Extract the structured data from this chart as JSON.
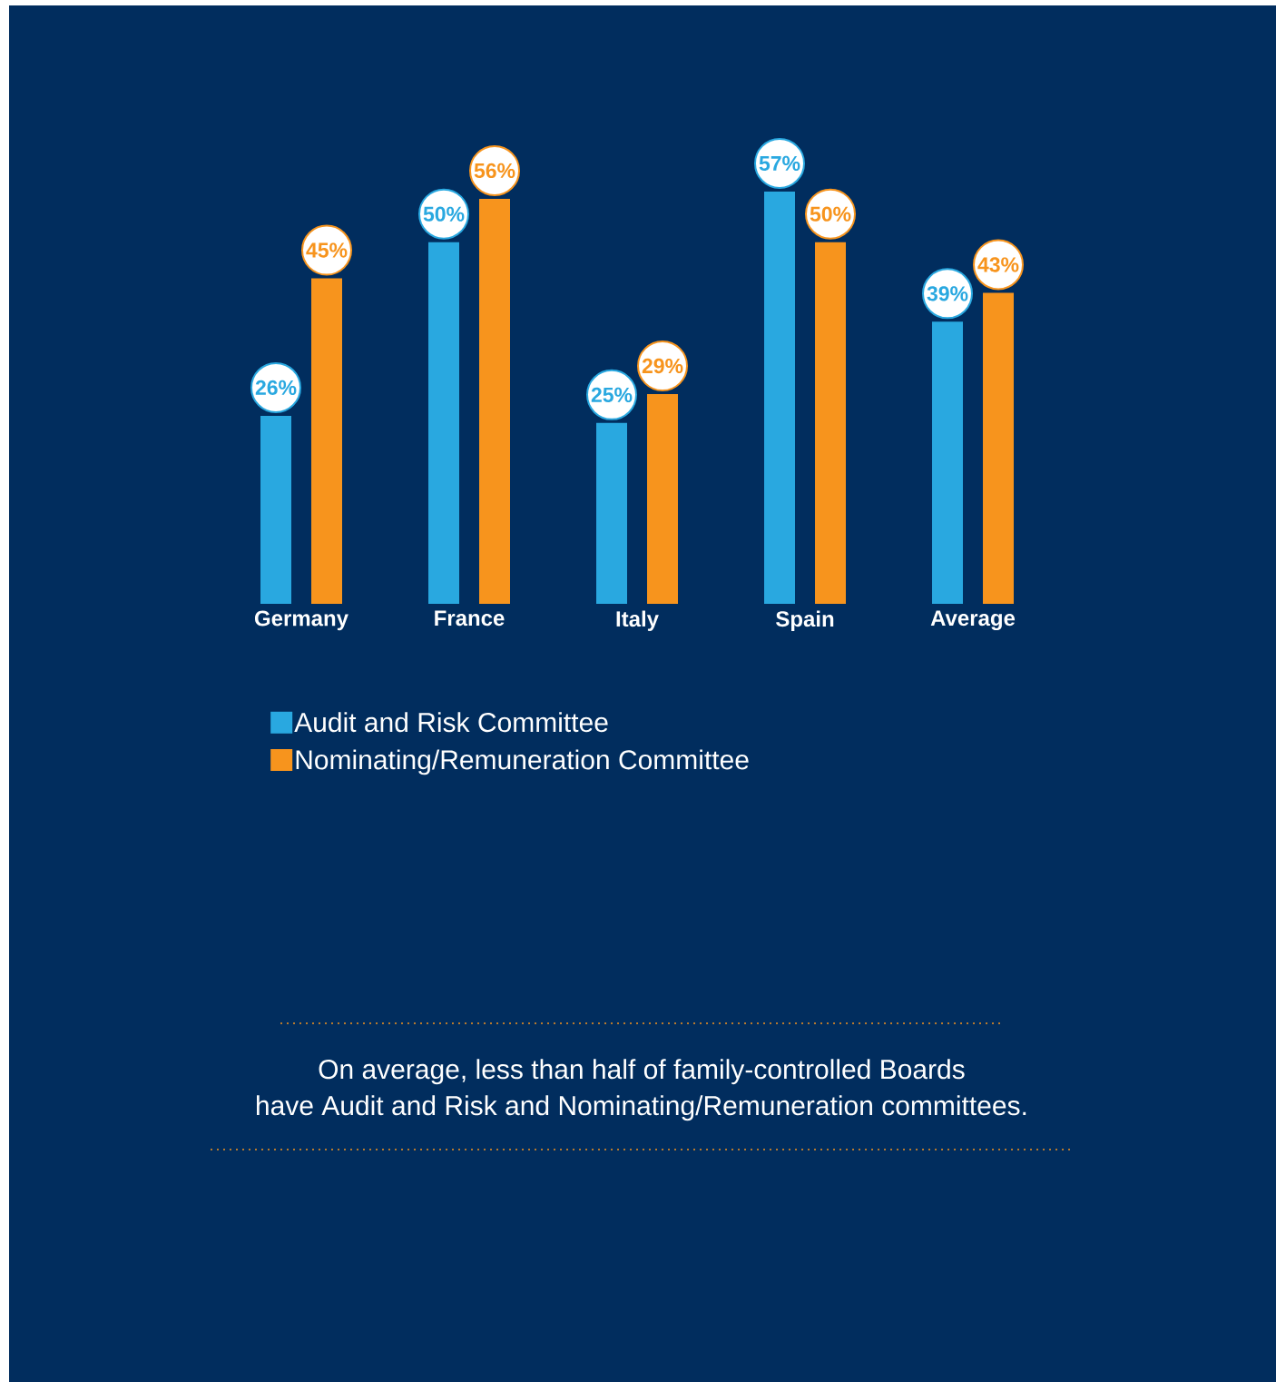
{
  "chart_data": {
    "type": "bar",
    "categories": [
      "Germany",
      "France",
      "Italy",
      "Spain",
      "Average"
    ],
    "series": [
      {
        "name": "Audit and Risk Committee",
        "color": "#29A8E0",
        "values": [
          26,
          50,
          25,
          57,
          39
        ],
        "value_labels": [
          "26%",
          "50%",
          "25%",
          "57%",
          "39%"
        ]
      },
      {
        "name": "Nominating/Remuneration Committee",
        "color": "#F7941D",
        "values": [
          45,
          56,
          29,
          50,
          43
        ],
        "value_labels": [
          "45%",
          "56%",
          "29%",
          "50%",
          "43%"
        ]
      }
    ],
    "legend": "bottom",
    "annotations": [
      "On average, less than half of family-controlled Boards",
      "have Audit and Risk and Nominating/Remuneration committees."
    ]
  }
}
